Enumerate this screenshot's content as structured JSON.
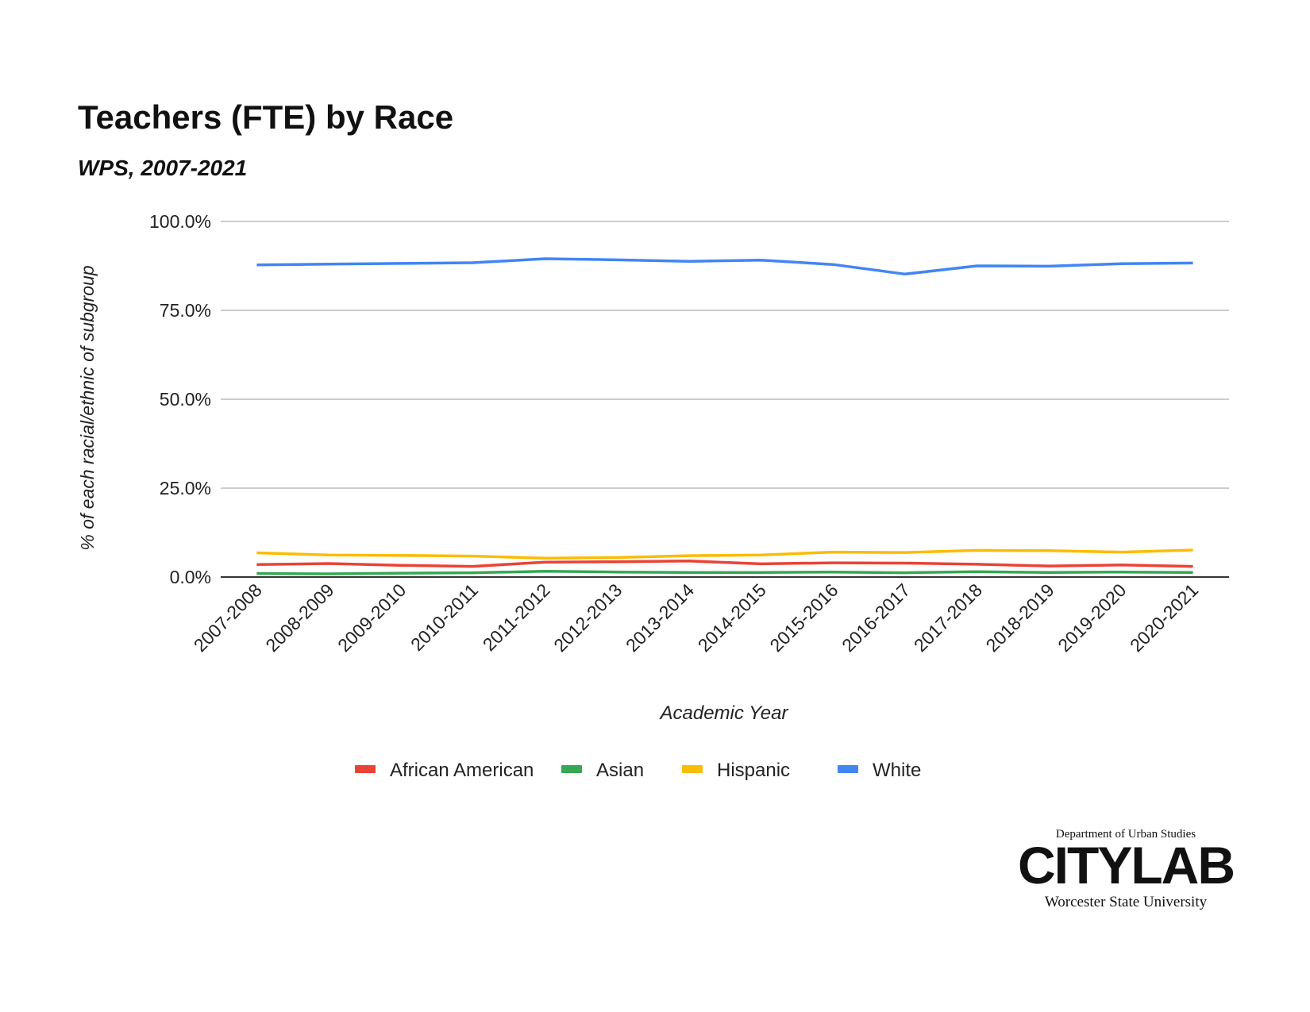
{
  "chart_data": {
    "type": "line",
    "title": "Teachers (FTE) by Race",
    "subtitle": "WPS, 2007-2021",
    "xlabel": "Academic Year",
    "ylabel": "% of each racial/ethnic of subgroup",
    "ylim": [
      0,
      100
    ],
    "yticks": [
      "0.0%",
      "25.0%",
      "50.0%",
      "75.0%",
      "100.0%"
    ],
    "ytick_values": [
      0,
      25,
      50,
      75,
      100
    ],
    "grid": true,
    "legend_position": "bottom",
    "categories": [
      "2007-2008",
      "2008-2009",
      "2009-2010",
      "2010-2011",
      "2011-2012",
      "2012-2013",
      "2013-2014",
      "2014-2015",
      "2015-2016",
      "2016-2017",
      "2017-2018",
      "2018-2019",
      "2019-2020",
      "2020-2021"
    ],
    "series": [
      {
        "name": "African American",
        "color": "#ea4335",
        "values": [
          3.5,
          3.8,
          3.3,
          3.0,
          4.2,
          4.3,
          4.5,
          3.7,
          4.0,
          3.9,
          3.6,
          3.1,
          3.4,
          3.0
        ]
      },
      {
        "name": "Asian",
        "color": "#34a853",
        "values": [
          1.0,
          0.9,
          1.1,
          1.2,
          1.6,
          1.4,
          1.3,
          1.3,
          1.4,
          1.2,
          1.5,
          1.3,
          1.4,
          1.3
        ]
      },
      {
        "name": "Hispanic",
        "color": "#fbbc04",
        "values": [
          6.8,
          6.2,
          6.1,
          5.9,
          5.3,
          5.5,
          6.0,
          6.2,
          7.0,
          6.9,
          7.5,
          7.4,
          7.0,
          7.6
        ]
      },
      {
        "name": "White",
        "color": "#4285f4",
        "values": [
          87.8,
          88.0,
          88.2,
          88.4,
          89.5,
          89.2,
          88.8,
          89.1,
          87.9,
          85.2,
          87.5,
          87.4,
          88.1,
          88.3
        ]
      }
    ]
  },
  "logo": {
    "dept": "Department of Urban Studies",
    "word": "CITYLAB",
    "uni": "Worcester State University"
  }
}
